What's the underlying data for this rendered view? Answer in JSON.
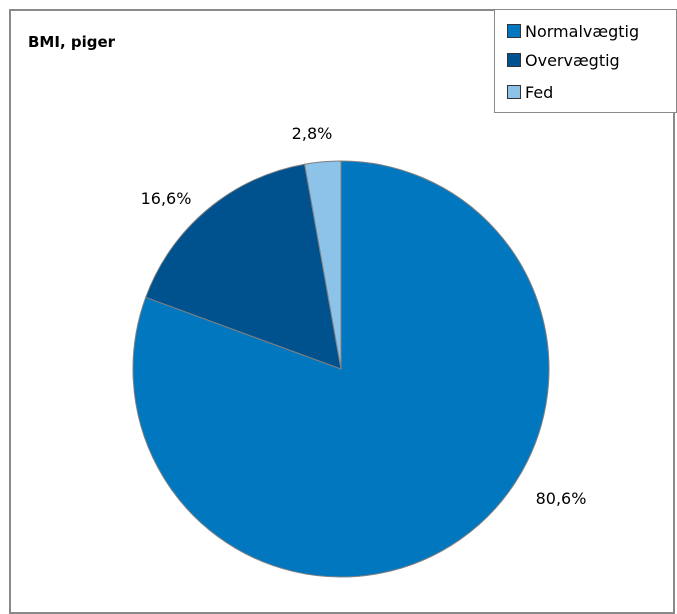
{
  "chart_data": {
    "type": "pie",
    "title": "BMI, piger",
    "categories": [
      "Normalvægtig",
      "Overvægtig",
      "Fed"
    ],
    "values": [
      80.6,
      16.6,
      2.8
    ],
    "data_labels": [
      "80,6%",
      "16,6%",
      "2,8%"
    ],
    "colors": [
      "#0077BF",
      "#00528F",
      "#8DC3E8"
    ],
    "legend_placement": "top-right"
  }
}
